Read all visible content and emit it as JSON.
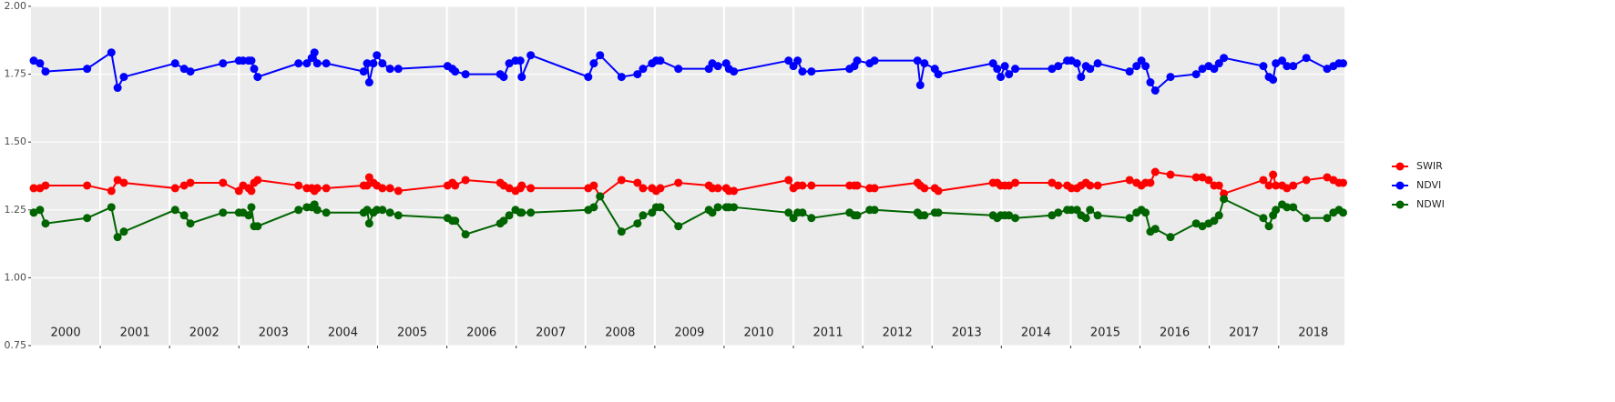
{
  "chart_data": {
    "type": "line",
    "x": [
      2000.04,
      2000.13,
      2000.21,
      2000.81,
      2001.16,
      2001.25,
      2001.34,
      2002.08,
      2002.21,
      2002.3,
      2002.77,
      2003.0,
      2003.06,
      2003.14,
      2003.18,
      2003.22,
      2003.27,
      2003.86,
      2003.98,
      2004.05,
      2004.09,
      2004.13,
      2004.26,
      2004.8,
      2004.85,
      2004.88,
      2004.94,
      2004.99,
      2005.07,
      2005.18,
      2005.3,
      2006.01,
      2006.08,
      2006.12,
      2006.27,
      2006.77,
      2006.82,
      2006.9,
      2006.99,
      2007.06,
      2007.08,
      2007.21,
      2008.04,
      2008.12,
      2008.21,
      2008.52,
      2008.75,
      2008.83,
      2008.96,
      2009.02,
      2009.08,
      2009.34,
      2009.78,
      2009.83,
      2009.91,
      2010.03,
      2010.07,
      2010.14,
      2010.93,
      2011.0,
      2011.06,
      2011.13,
      2011.26,
      2011.81,
      2011.88,
      2011.92,
      2012.1,
      2012.17,
      2012.79,
      2012.83,
      2012.89,
      2013.04,
      2013.09,
      2013.88,
      2013.94,
      2013.99,
      2014.05,
      2014.11,
      2014.2,
      2014.73,
      2014.82,
      2014.95,
      2015.01,
      2015.09,
      2015.15,
      2015.22,
      2015.28,
      2015.39,
      2015.85,
      2015.95,
      2016.02,
      2016.08,
      2016.15,
      2016.22,
      2016.44,
      2016.81,
      2016.9,
      2016.99,
      2017.07,
      2017.14,
      2017.21,
      2017.78,
      2017.86,
      2017.92,
      2017.96,
      2018.05,
      2018.12,
      2018.21,
      2018.4,
      2018.7,
      2018.79,
      2018.87,
      2018.93
    ],
    "series": [
      {
        "name": "SWIR",
        "color": "#ff0000",
        "values": [
          1.33,
          1.33,
          1.34,
          1.34,
          1.32,
          1.36,
          1.35,
          1.33,
          1.34,
          1.35,
          1.35,
          1.32,
          1.34,
          1.33,
          1.32,
          1.35,
          1.36,
          1.34,
          1.33,
          1.33,
          1.32,
          1.33,
          1.33,
          1.34,
          1.34,
          1.37,
          1.35,
          1.34,
          1.33,
          1.33,
          1.32,
          1.34,
          1.35,
          1.34,
          1.36,
          1.35,
          1.34,
          1.33,
          1.32,
          1.33,
          1.34,
          1.33,
          1.33,
          1.34,
          1.3,
          1.36,
          1.35,
          1.33,
          1.33,
          1.32,
          1.33,
          1.35,
          1.34,
          1.33,
          1.33,
          1.33,
          1.32,
          1.32,
          1.36,
          1.33,
          1.34,
          1.34,
          1.34,
          1.34,
          1.34,
          1.34,
          1.33,
          1.33,
          1.35,
          1.34,
          1.33,
          1.33,
          1.32,
          1.35,
          1.35,
          1.34,
          1.34,
          1.34,
          1.35,
          1.35,
          1.34,
          1.34,
          1.33,
          1.33,
          1.34,
          1.35,
          1.34,
          1.34,
          1.36,
          1.35,
          1.34,
          1.35,
          1.35,
          1.39,
          1.38,
          1.37,
          1.37,
          1.36,
          1.34,
          1.34,
          1.31,
          1.36,
          1.34,
          1.38,
          1.34,
          1.34,
          1.33,
          1.34,
          1.36,
          1.37,
          1.36,
          1.35,
          1.35
        ]
      },
      {
        "name": "NDVI",
        "color": "#0000ff",
        "values": [
          1.8,
          1.79,
          1.76,
          1.77,
          1.83,
          1.7,
          1.74,
          1.79,
          1.77,
          1.76,
          1.79,
          1.8,
          1.8,
          1.8,
          1.8,
          1.77,
          1.74,
          1.79,
          1.79,
          1.81,
          1.83,
          1.79,
          1.79,
          1.76,
          1.79,
          1.72,
          1.79,
          1.82,
          1.79,
          1.77,
          1.77,
          1.78,
          1.77,
          1.76,
          1.75,
          1.75,
          1.74,
          1.79,
          1.8,
          1.8,
          1.74,
          1.82,
          1.74,
          1.79,
          1.82,
          1.74,
          1.75,
          1.77,
          1.79,
          1.8,
          1.8,
          1.77,
          1.77,
          1.79,
          1.78,
          1.79,
          1.77,
          1.76,
          1.8,
          1.78,
          1.8,
          1.76,
          1.76,
          1.77,
          1.78,
          1.8,
          1.79,
          1.8,
          1.8,
          1.71,
          1.79,
          1.77,
          1.75,
          1.79,
          1.77,
          1.74,
          1.78,
          1.75,
          1.77,
          1.77,
          1.78,
          1.8,
          1.8,
          1.79,
          1.74,
          1.78,
          1.77,
          1.79,
          1.76,
          1.78,
          1.8,
          1.78,
          1.72,
          1.69,
          1.74,
          1.75,
          1.77,
          1.78,
          1.77,
          1.79,
          1.81,
          1.78,
          1.74,
          1.73,
          1.79,
          1.8,
          1.78,
          1.78,
          1.81,
          1.77,
          1.78,
          1.79,
          1.79
        ]
      },
      {
        "name": "NDWI",
        "color": "#006400",
        "values": [
          1.24,
          1.25,
          1.2,
          1.22,
          1.26,
          1.15,
          1.17,
          1.25,
          1.23,
          1.2,
          1.24,
          1.24,
          1.24,
          1.23,
          1.26,
          1.19,
          1.19,
          1.25,
          1.26,
          1.26,
          1.27,
          1.25,
          1.24,
          1.24,
          1.25,
          1.2,
          1.24,
          1.25,
          1.25,
          1.24,
          1.23,
          1.22,
          1.21,
          1.21,
          1.16,
          1.2,
          1.21,
          1.23,
          1.25,
          1.24,
          1.24,
          1.24,
          1.25,
          1.26,
          1.3,
          1.17,
          1.2,
          1.23,
          1.24,
          1.26,
          1.26,
          1.19,
          1.25,
          1.24,
          1.26,
          1.26,
          1.26,
          1.26,
          1.24,
          1.22,
          1.24,
          1.24,
          1.22,
          1.24,
          1.23,
          1.23,
          1.25,
          1.25,
          1.24,
          1.23,
          1.23,
          1.24,
          1.24,
          1.23,
          1.22,
          1.23,
          1.23,
          1.23,
          1.22,
          1.23,
          1.24,
          1.25,
          1.25,
          1.25,
          1.23,
          1.22,
          1.25,
          1.23,
          1.22,
          1.24,
          1.25,
          1.24,
          1.17,
          1.18,
          1.15,
          1.2,
          1.19,
          1.2,
          1.21,
          1.23,
          1.29,
          1.22,
          1.19,
          1.23,
          1.25,
          1.27,
          1.26,
          1.26,
          1.22,
          1.22,
          1.24,
          1.25,
          1.24
        ]
      }
    ],
    "year_labels": [
      "2000",
      "2001",
      "2002",
      "2003",
      "2004",
      "2005",
      "2006",
      "2007",
      "2008",
      "2009",
      "2010",
      "2011",
      "2012",
      "2013",
      "2014",
      "2015",
      "2016",
      "2017",
      "2018"
    ],
    "xlim": [
      2000,
      2018.95
    ],
    "xticks": [
      2001,
      2002,
      2003,
      2004,
      2005,
      2006,
      2007,
      2008,
      2009,
      2010,
      2011,
      2012,
      2013,
      2014,
      2015,
      2016,
      2017,
      2018
    ],
    "ylim": [
      0.75,
      2.0
    ],
    "yticks": [
      {
        "value": 0.75,
        "label": "0.75"
      },
      {
        "value": 1,
        "label": "1.00"
      },
      {
        "value": 1.25,
        "label": "1.25"
      },
      {
        "value": 1.5,
        "label": "1.50"
      },
      {
        "value": 1.75,
        "label": "1.75"
      },
      {
        "value": 2,
        "label": "2.00"
      }
    ],
    "grid": true
  }
}
